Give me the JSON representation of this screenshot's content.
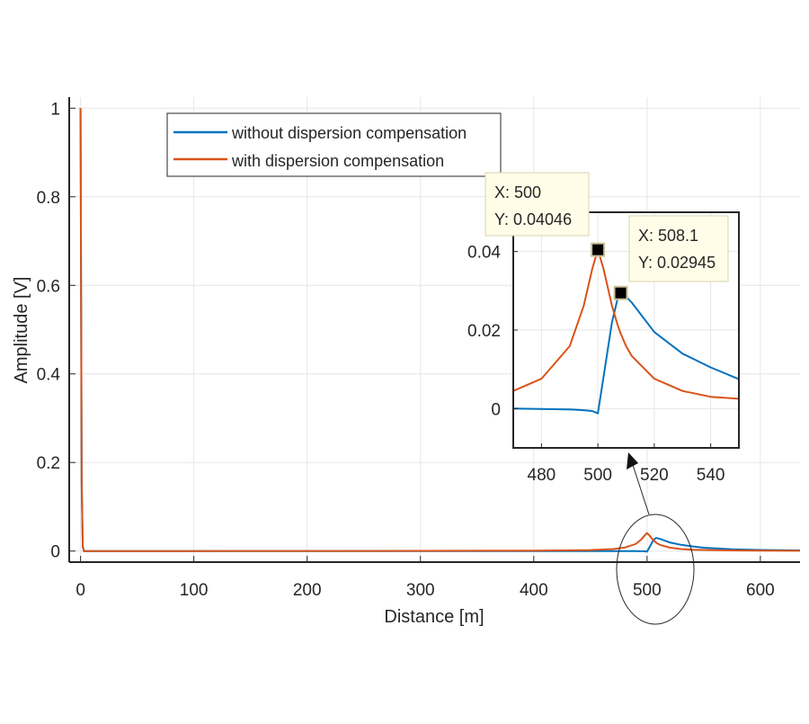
{
  "chart_data": {
    "type": "line",
    "xlabel": "Distance [m]",
    "ylabel": "Amplitude [V]",
    "xlim": [
      -10,
      635
    ],
    "ylim": [
      -0.025,
      1.025
    ],
    "grid": true,
    "xticks": [
      0,
      100,
      200,
      300,
      400,
      500,
      600
    ],
    "xtick_labels": [
      "0",
      "100",
      "200",
      "300",
      "400",
      "500",
      "600"
    ],
    "yticks": [
      0,
      0.2,
      0.4,
      0.6,
      0.8,
      1
    ],
    "ytick_labels": [
      "0",
      "0.2",
      "0.4",
      "0.6",
      "0.8",
      "1"
    ],
    "legend": {
      "placement": "top-left-center",
      "entries": [
        "without dispersion compensation",
        "with dispersion compensation"
      ]
    },
    "x": [
      0,
      0.5,
      1,
      2,
      3,
      100,
      200,
      300,
      400,
      450,
      470,
      480,
      490,
      495,
      498,
      500,
      502,
      505,
      507,
      508.1,
      510,
      512,
      520,
      530,
      540,
      550,
      575,
      600,
      635
    ],
    "series": [
      {
        "name": "without dispersion compensation",
        "color": "#0072BD",
        "values": [
          1,
          0.6,
          0.15,
          0.01,
          0,
          0,
          0,
          0,
          0,
          -0.0002,
          0,
          -0.0001,
          -0.0002,
          -0.0004,
          -0.0006,
          -0.0012,
          0.008,
          0.022,
          0.028,
          0.02945,
          0.0285,
          0.027,
          0.0195,
          0.014,
          0.0105,
          0.0075,
          0.004,
          0.0025,
          0.0015
        ]
      },
      {
        "name": "with dispersion compensation",
        "color": "#D95319",
        "values": [
          1,
          0.6,
          0.15,
          0.01,
          0,
          0,
          0.0001,
          0.0003,
          0.0008,
          0.0022,
          0.0045,
          0.0076,
          0.0159,
          0.0262,
          0.0356,
          0.04046,
          0.0356,
          0.0262,
          0.0213,
          0.0191,
          0.0159,
          0.0134,
          0.0076,
          0.0045,
          0.003,
          0.0025,
          0.0015,
          0.001,
          0.0006
        ]
      }
    ],
    "inset": {
      "xlim": [
        470,
        550
      ],
      "ylim": [
        -0.01,
        0.05
      ],
      "xticks": [
        480,
        500,
        520,
        540
      ],
      "xtick_labels": [
        "480",
        "500",
        "520",
        "540"
      ],
      "yticks": [
        0,
        0.02,
        0.04
      ],
      "ytick_labels": [
        "0",
        "0.02",
        "0.04"
      ]
    },
    "datatips": [
      {
        "series": 1,
        "x": 500,
        "y": 0.04046,
        "line1": "X: 500",
        "line2": "Y: 0.04046"
      },
      {
        "series": 0,
        "x": 508.1,
        "y": 0.02945,
        "line1": "X: 508.1",
        "line2": "Y: 0.02945"
      }
    ],
    "annotation": "zoomed region around 500 m"
  }
}
